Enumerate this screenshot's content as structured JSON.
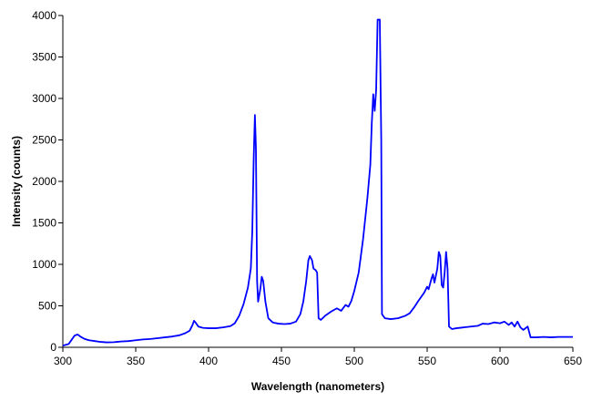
{
  "chart_data": {
    "type": "line",
    "title": "",
    "xlabel": "Wavelength (nanometers)",
    "ylabel": "Intensity (counts)",
    "xlim": [
      300,
      650
    ],
    "ylim": [
      0,
      4000
    ],
    "xticks": [
      300,
      350,
      400,
      450,
      500,
      550,
      600,
      650
    ],
    "yticks": [
      0,
      500,
      1000,
      1500,
      2000,
      2500,
      3000,
      3500,
      4000
    ],
    "grid": false,
    "legend": "none",
    "line_color": "#0000ff",
    "series": [
      {
        "points": [
          [
            300,
            20
          ],
          [
            302,
            30
          ],
          [
            304,
            40
          ],
          [
            306,
            90
          ],
          [
            308,
            140
          ],
          [
            310,
            155
          ],
          [
            312,
            130
          ],
          [
            315,
            100
          ],
          [
            318,
            85
          ],
          [
            322,
            75
          ],
          [
            326,
            65
          ],
          [
            330,
            60
          ],
          [
            335,
            62
          ],
          [
            340,
            70
          ],
          [
            345,
            75
          ],
          [
            350,
            85
          ],
          [
            355,
            95
          ],
          [
            360,
            100
          ],
          [
            365,
            110
          ],
          [
            370,
            120
          ],
          [
            375,
            130
          ],
          [
            380,
            145
          ],
          [
            384,
            170
          ],
          [
            387,
            200
          ],
          [
            389,
            270
          ],
          [
            390,
            320
          ],
          [
            391,
            300
          ],
          [
            393,
            250
          ],
          [
            396,
            235
          ],
          [
            400,
            230
          ],
          [
            405,
            230
          ],
          [
            410,
            240
          ],
          [
            415,
            255
          ],
          [
            418,
            290
          ],
          [
            421,
            380
          ],
          [
            424,
            520
          ],
          [
            427,
            720
          ],
          [
            429,
            950
          ],
          [
            430,
            1400
          ],
          [
            431,
            2300
          ],
          [
            431.8,
            2800
          ],
          [
            432.5,
            2400
          ],
          [
            433.3,
            800
          ],
          [
            434,
            550
          ],
          [
            435.5,
            700
          ],
          [
            436.5,
            850
          ],
          [
            437.5,
            800
          ],
          [
            439,
            550
          ],
          [
            441,
            350
          ],
          [
            444,
            300
          ],
          [
            448,
            285
          ],
          [
            452,
            280
          ],
          [
            456,
            285
          ],
          [
            460,
            310
          ],
          [
            463,
            400
          ],
          [
            465,
            550
          ],
          [
            467,
            800
          ],
          [
            468.5,
            1050
          ],
          [
            469.5,
            1100
          ],
          [
            471,
            1050
          ],
          [
            472,
            950
          ],
          [
            473.5,
            930
          ],
          [
            474.5,
            900
          ],
          [
            475.5,
            350
          ],
          [
            477,
            330
          ],
          [
            480,
            380
          ],
          [
            484,
            430
          ],
          [
            488,
            470
          ],
          [
            491,
            440
          ],
          [
            494,
            510
          ],
          [
            496,
            490
          ],
          [
            498,
            560
          ],
          [
            500,
            680
          ],
          [
            503,
            900
          ],
          [
            506,
            1300
          ],
          [
            509,
            1800
          ],
          [
            511,
            2200
          ],
          [
            512,
            2700
          ],
          [
            513,
            3050
          ],
          [
            514,
            2850
          ],
          [
            515,
            3100
          ],
          [
            516,
            3950
          ],
          [
            517.5,
            3950
          ],
          [
            518.5,
            2500
          ],
          [
            519,
            400
          ],
          [
            521,
            350
          ],
          [
            525,
            340
          ],
          [
            530,
            350
          ],
          [
            535,
            380
          ],
          [
            538,
            410
          ],
          [
            541,
            480
          ],
          [
            544,
            560
          ],
          [
            546,
            610
          ],
          [
            548,
            660
          ],
          [
            550,
            730
          ],
          [
            551,
            700
          ],
          [
            553,
            830
          ],
          [
            554,
            880
          ],
          [
            555,
            780
          ],
          [
            557,
            950
          ],
          [
            558,
            1150
          ],
          [
            559,
            1100
          ],
          [
            560,
            750
          ],
          [
            561,
            720
          ],
          [
            562,
            900
          ],
          [
            563,
            1150
          ],
          [
            564,
            950
          ],
          [
            565,
            250
          ],
          [
            567,
            220
          ],
          [
            570,
            230
          ],
          [
            575,
            240
          ],
          [
            580,
            250
          ],
          [
            585,
            260
          ],
          [
            588,
            285
          ],
          [
            592,
            280
          ],
          [
            596,
            300
          ],
          [
            600,
            290
          ],
          [
            603,
            310
          ],
          [
            606,
            270
          ],
          [
            608,
            300
          ],
          [
            610,
            250
          ],
          [
            612,
            310
          ],
          [
            614,
            240
          ],
          [
            616,
            210
          ],
          [
            619,
            250
          ],
          [
            621,
            120
          ],
          [
            625,
            120
          ],
          [
            630,
            125
          ],
          [
            635,
            120
          ],
          [
            640,
            125
          ],
          [
            645,
            125
          ],
          [
            650,
            125
          ]
        ]
      }
    ]
  }
}
